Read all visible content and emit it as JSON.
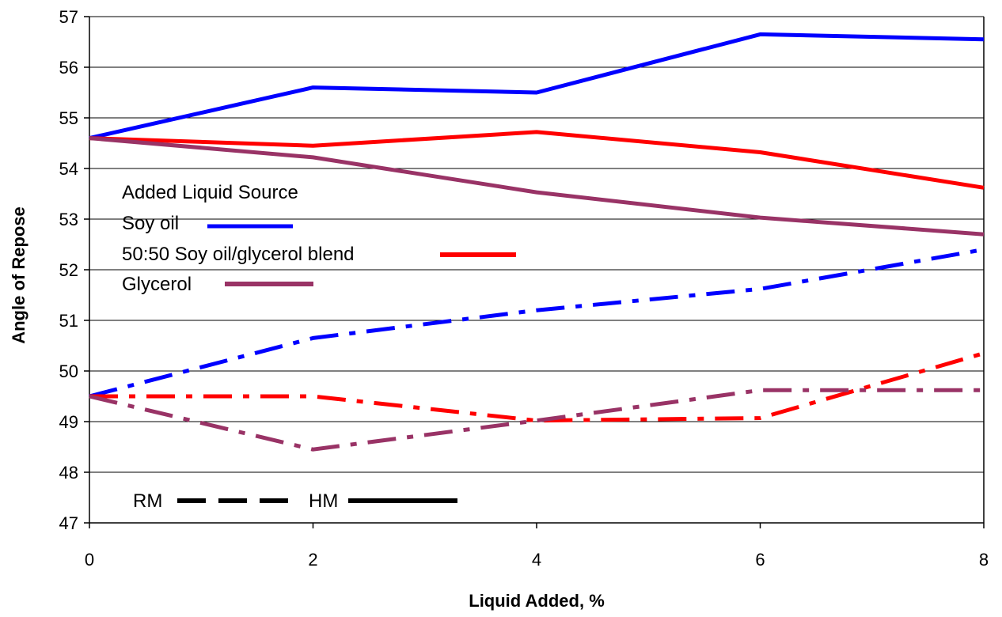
{
  "chart_data": {
    "type": "line",
    "xlabel": "Liquid Added, %",
    "ylabel": "Angle of Repose",
    "xlim": [
      0,
      8
    ],
    "ylim": [
      47,
      57
    ],
    "x_ticks": [
      0,
      2,
      4,
      6,
      8
    ],
    "y_ticks": [
      47,
      48,
      49,
      50,
      51,
      52,
      53,
      54,
      55,
      56,
      57
    ],
    "grid": "horizontal",
    "x": [
      0,
      2,
      4,
      6,
      8
    ],
    "series": [
      {
        "name": "Soy oil",
        "group": "HM",
        "color": "#0000ff",
        "style": "solid",
        "values": [
          54.6,
          55.6,
          55.5,
          56.65,
          56.55
        ]
      },
      {
        "name": "50:50 Soy oil/glycerol blend",
        "group": "HM",
        "color": "#ff0000",
        "style": "solid",
        "values": [
          54.6,
          54.45,
          54.72,
          54.32,
          53.62
        ]
      },
      {
        "name": "Glycerol",
        "group": "HM",
        "color": "#993366",
        "style": "solid",
        "values": [
          54.6,
          54.22,
          53.53,
          53.03,
          52.7
        ]
      },
      {
        "name": "Soy oil",
        "group": "RM",
        "color": "#0000ff",
        "style": "dashdot",
        "values": [
          49.5,
          50.65,
          51.2,
          51.62,
          52.4
        ]
      },
      {
        "name": "50:50 Soy oil/glycerol blend",
        "group": "RM",
        "color": "#ff0000",
        "style": "dashdot",
        "values": [
          49.5,
          49.5,
          49.02,
          49.07,
          50.35
        ]
      },
      {
        "name": "Glycerol",
        "group": "RM",
        "color": "#993366",
        "style": "dashdot",
        "values": [
          49.5,
          48.45,
          49.02,
          49.62,
          49.62
        ]
      }
    ],
    "legend": {
      "title": "Added Liquid Source",
      "placement": "inside-left",
      "entries": [
        {
          "label": "Soy oil",
          "color": "#0000ff"
        },
        {
          "label": "50:50 Soy oil/glycerol blend",
          "color": "#ff0000"
        },
        {
          "label": "Glycerol",
          "color": "#993366"
        }
      ],
      "style_entries": [
        {
          "label": "RM",
          "style": "dashed"
        },
        {
          "label": "HM",
          "style": "solid"
        }
      ]
    }
  }
}
